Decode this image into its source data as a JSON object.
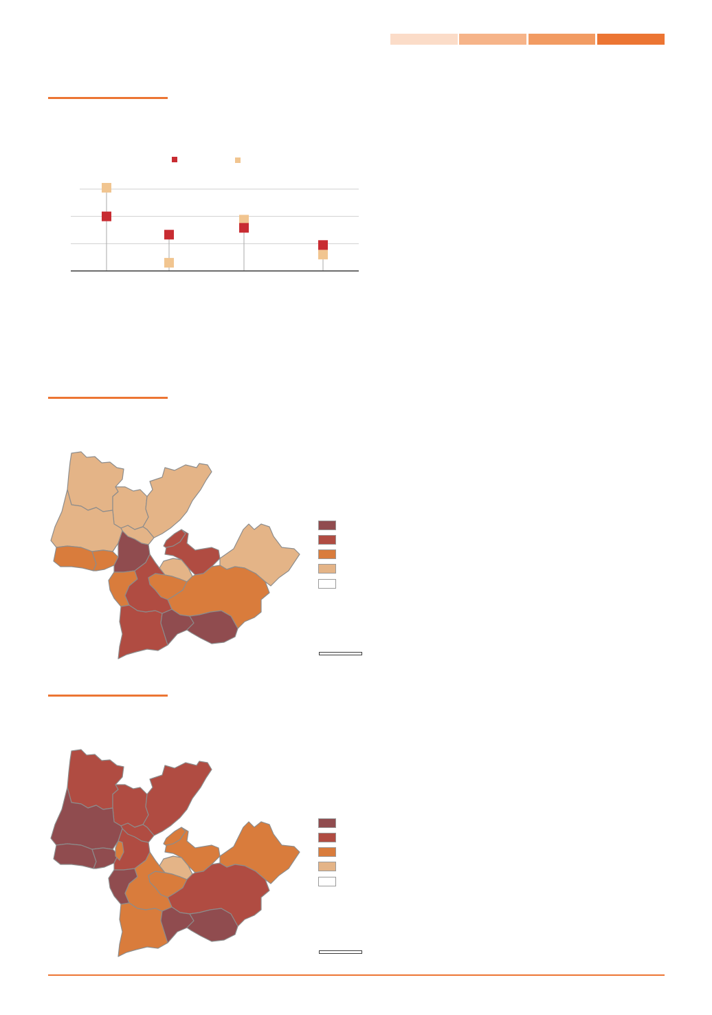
{
  "colors": {
    "accent": "#ec7533",
    "strip": [
      "#fbdcc8",
      "#f6b489",
      "#f29b62",
      "#ec7533"
    ],
    "series_red": "#c82c32",
    "series_tan": "#f1c590",
    "class_1": "#904c4f",
    "class_2": "#b04c42",
    "class_3": "#d97c3c",
    "class_4": "#e4b487",
    "class_5": "#ffffff"
  },
  "chart_data": {
    "type": "scatter",
    "title": "",
    "categories": [
      "",
      "",
      "",
      ""
    ],
    "series": [
      {
        "color": "#c82c32",
        "values": [
          2.0,
          1.33,
          1.58,
          0.95
        ]
      },
      {
        "color": "#f1c590",
        "values": [
          3.05,
          0.3,
          1.88,
          0.6
        ]
      }
    ],
    "ylim": [
      0,
      3
    ],
    "grid": true,
    "legend": "top"
  },
  "maps": [
    {
      "id": "map-1",
      "legend_colors": [
        "#904c4f",
        "#b04c42",
        "#d97c3c",
        "#e4b487",
        "#ffffff"
      ],
      "regions": {
        "northwest": "#e4b487",
        "north-central": "#e4b487",
        "north-inner": "#e4b487",
        "northeast": "#e4b487",
        "west-coast": "#e4b487",
        "west-south": "#d97c3c",
        "coast-sw": "#d97c3c",
        "center-west": "#904c4f",
        "peninsula-north": "#b04c42",
        "peninsula-east": "#b04c42",
        "east-upper": "#e4b487",
        "south-center-a": "#e4b487",
        "south-center-b": "#d97c3c",
        "south-plain": "#d97c3c",
        "southwest-a": "#d97c3c",
        "southwest-b": "#b04c42",
        "southwest-c": "#b04c42",
        "south-bottom-a": "#904c4f",
        "south-bottom-b": "#904c4f"
      }
    },
    {
      "id": "map-2",
      "legend_colors": [
        "#904c4f",
        "#b04c42",
        "#d97c3c",
        "#e4b487",
        "#ffffff"
      ],
      "regions": {
        "northwest": "#b04c42",
        "north-central": "#b04c42",
        "north-inner": "#b04c42",
        "northeast": "#b04c42",
        "west-coast": "#904c4f",
        "west-south": "#904c4f",
        "coast-sw": "#904c4f",
        "center-west": "#b04c42",
        "center-west-small": "#d97c3c",
        "peninsula-north": "#d97c3c",
        "peninsula-east": "#d97c3c",
        "east-upper": "#d97c3c",
        "south-center-a": "#e4b487",
        "south-center-b": "#d97c3c",
        "south-plain": "#b04c42",
        "southwest-a": "#904c4f",
        "southwest-b": "#d97c3c",
        "southwest-c": "#d97c3c",
        "south-bottom-a": "#904c4f",
        "south-bottom-b": "#904c4f"
      }
    }
  ]
}
